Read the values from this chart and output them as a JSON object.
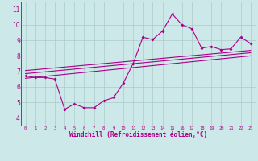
{
  "xlabel": "Windchill (Refroidissement éolien,°C)",
  "background_color": "#cde8e8",
  "line_color": "#aa0088",
  "grid_color": "#aacccc",
  "xlim": [
    -0.5,
    23.5
  ],
  "ylim": [
    3.5,
    11.5
  ],
  "xticks": [
    0,
    1,
    2,
    3,
    4,
    5,
    6,
    7,
    8,
    9,
    10,
    11,
    12,
    13,
    14,
    15,
    16,
    17,
    18,
    19,
    20,
    21,
    22,
    23
  ],
  "yticks": [
    4,
    5,
    6,
    7,
    8,
    9,
    10,
    11
  ],
  "main_x": [
    0,
    1,
    2,
    3,
    4,
    5,
    6,
    7,
    8,
    9,
    10,
    11,
    12,
    13,
    14,
    15,
    16,
    17,
    18,
    19,
    20,
    21,
    22,
    23
  ],
  "main_y": [
    6.7,
    6.6,
    6.6,
    6.5,
    4.55,
    4.9,
    4.65,
    4.65,
    5.1,
    5.3,
    6.25,
    7.5,
    9.2,
    9.05,
    9.6,
    10.7,
    10.0,
    9.75,
    8.5,
    8.6,
    8.4,
    8.45,
    9.2,
    8.8
  ],
  "line1_x": [
    0,
    23
  ],
  "line1_y": [
    6.55,
    8.0
  ],
  "line2_x": [
    0,
    23
  ],
  "line2_y": [
    6.85,
    8.2
  ],
  "line3_x": [
    0,
    23
  ],
  "line3_y": [
    7.05,
    8.35
  ]
}
